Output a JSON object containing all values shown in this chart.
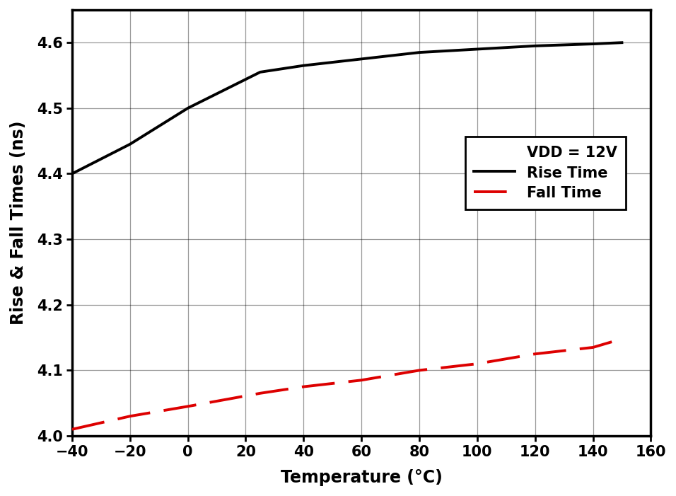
{
  "rise_time_x": [
    -40,
    -20,
    0,
    25,
    40,
    60,
    80,
    100,
    120,
    140,
    150
  ],
  "rise_time_y": [
    4.4,
    4.445,
    4.5,
    4.555,
    4.565,
    4.575,
    4.585,
    4.59,
    4.595,
    4.598,
    4.6
  ],
  "fall_time_x": [
    -40,
    -20,
    0,
    25,
    40,
    60,
    80,
    100,
    120,
    140,
    150
  ],
  "fall_time_y": [
    4.01,
    4.03,
    4.045,
    4.065,
    4.075,
    4.085,
    4.1,
    4.11,
    4.125,
    4.135,
    4.148
  ],
  "rise_color": "#000000",
  "fall_color": "#dd0000",
  "xlabel": "Temperature (°C)",
  "ylabel": "Rise & Fall Times (ns)",
  "xlim": [
    -40,
    160
  ],
  "ylim": [
    4.0,
    4.65
  ],
  "xticks": [
    -40,
    -20,
    0,
    20,
    40,
    60,
    80,
    100,
    120,
    140,
    160
  ],
  "yticks": [
    4.0,
    4.1,
    4.2,
    4.3,
    4.4,
    4.5,
    4.6
  ],
  "legend_label_vdd": "VDD = 12V",
  "legend_label_rise": "Rise Time",
  "legend_label_fall": "Fall Time",
  "grid_color": "#000000",
  "background_color": "#ffffff",
  "rise_linewidth": 2.8,
  "fall_linewidth": 2.8,
  "fall_dash_on": 12,
  "fall_dash_off": 5
}
